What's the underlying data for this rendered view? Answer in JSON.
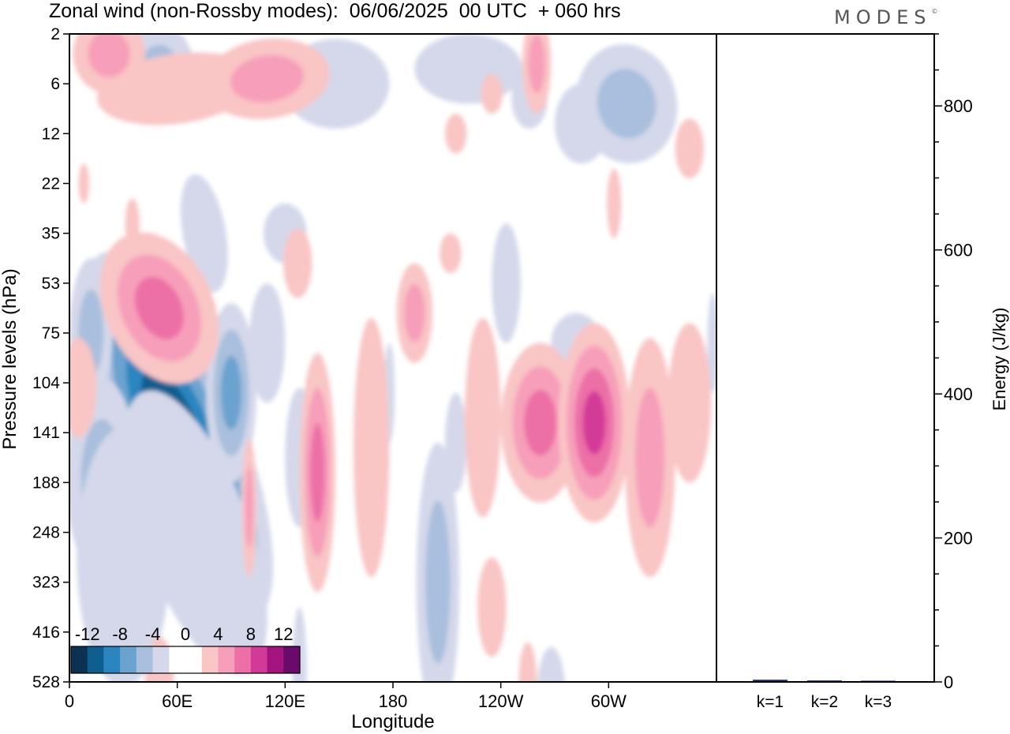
{
  "header": {
    "title": "Zonal wind (non-Rossby modes):  06/06/2025  00 UTC  + 060 hrs",
    "logo": "MODES",
    "logo_mark": "©"
  },
  "chart_data": [
    {
      "type": "heatmap",
      "title": "Zonal wind (non-Rossby modes):  06/06/2025  00 UTC  + 060 hrs",
      "xlabel": "Longitude",
      "ylabel": "Pressure levels (hPa)",
      "x_ticks": [
        "0",
        "60E",
        "120E",
        "180",
        "120W",
        "60W"
      ],
      "x_range_deg": [
        0,
        360
      ],
      "y_ticks": [
        "2",
        "6",
        "12",
        "22",
        "35",
        "53",
        "75",
        "104",
        "141",
        "188",
        "248",
        "323",
        "416",
        "528"
      ],
      "y_scale": "categorical model levels, top to bottom",
      "colorbar": {
        "labels": [
          "-12",
          "-8",
          "-4",
          "0",
          "4",
          "8",
          "12"
        ],
        "colors": [
          "#0b3250",
          "#0e5f8f",
          "#2b86c0",
          "#6aa3cf",
          "#a9bfdd",
          "#d4d8ea",
          "#ffffff",
          "#ffffff",
          "#f9c5c5",
          "#f79fba",
          "#ec6fa6",
          "#d33a98",
          "#a4147e",
          "#6a0a6a"
        ]
      },
      "features": [
        {
          "sign": "negative",
          "lon": [
            35,
            95
          ],
          "level_range": [
            "104",
            "188"
          ],
          "min": -13
        },
        {
          "sign": "positive",
          "lon": [
            30,
            90
          ],
          "level_range": [
            "53",
            "104"
          ],
          "max": 8
        },
        {
          "sign": "positive",
          "lon": [
            125,
            150
          ],
          "level_range": [
            "141",
            "248"
          ],
          "max": 7
        },
        {
          "sign": "positive",
          "lon": [
            250,
            300
          ],
          "level_range": [
            "104",
            "188"
          ],
          "max": 10
        },
        {
          "sign": "negative",
          "lon": [
            0,
            30
          ],
          "level_range": [
            "75",
            "323"
          ],
          "min": -5
        }
      ]
    },
    {
      "type": "bar",
      "categories": [
        "k=1",
        "k=2",
        "k=3"
      ],
      "values": [
        3,
        2,
        1
      ],
      "ylabel": "Energy (J/kg)",
      "ylim": [
        0,
        900
      ],
      "y_ticks": [
        0,
        200,
        400,
        600,
        800
      ],
      "bar_color": "#1a237e"
    }
  ]
}
